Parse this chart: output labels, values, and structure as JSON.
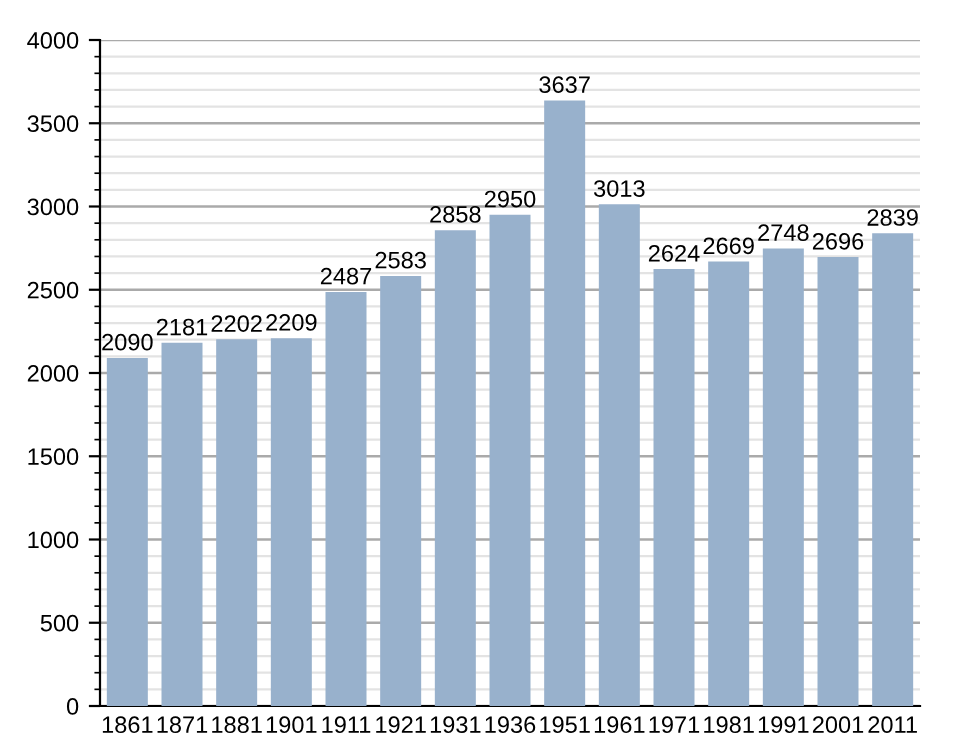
{
  "chart_data": {
    "type": "bar",
    "categories": [
      "1861",
      "1871",
      "1881",
      "1901",
      "1911",
      "1921",
      "1931",
      "1936",
      "1951",
      "1961",
      "1971",
      "1981",
      "1991",
      "2001",
      "2011"
    ],
    "values": [
      2090,
      2181,
      2202,
      2209,
      2487,
      2583,
      2858,
      2950,
      3637,
      3013,
      2624,
      2669,
      2748,
      2696,
      2839
    ],
    "color": "#98b1cc",
    "ylim": [
      0,
      4000
    ],
    "yticks": [
      0,
      500,
      1000,
      1500,
      2000,
      2500,
      3000,
      3500,
      4000
    ],
    "grid": "y",
    "data_labels": true
  }
}
